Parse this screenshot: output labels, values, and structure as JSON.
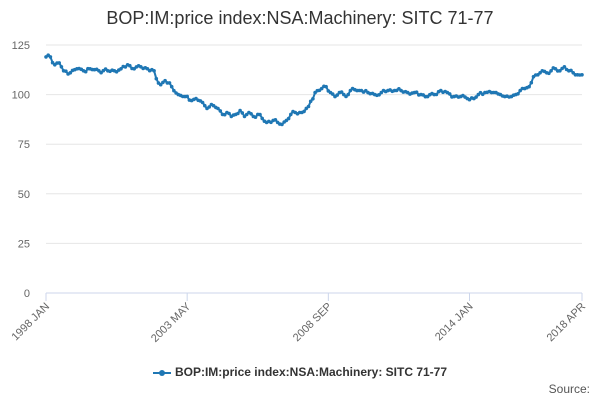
{
  "chart_data": {
    "type": "line",
    "title": "BOP:IM:price index:NSA:Machinery: SITC 71-77",
    "xlabel": "",
    "ylabel": "",
    "ylim": [
      0,
      125
    ],
    "yticks": [
      0,
      25,
      50,
      75,
      100,
      125
    ],
    "x_tick_labels": [
      "1998 JAN",
      "2003 MAY",
      "2008 SEP",
      "2014 JAN",
      "2018 APR"
    ],
    "x_tick_month_index": [
      0,
      64,
      128,
      192,
      243
    ],
    "legend_position": "bottom",
    "series": [
      {
        "name": "BOP:IM:price index:NSA:Machinery: SITC 71-77",
        "color": "#1f77b4",
        "anchors": [
          {
            "m": 0,
            "v": 119
          },
          {
            "m": 2,
            "v": 119
          },
          {
            "m": 4,
            "v": 115
          },
          {
            "m": 6,
            "v": 116
          },
          {
            "m": 8,
            "v": 112
          },
          {
            "m": 11,
            "v": 111
          },
          {
            "m": 14,
            "v": 113
          },
          {
            "m": 17,
            "v": 112
          },
          {
            "m": 20,
            "v": 113
          },
          {
            "m": 24,
            "v": 112
          },
          {
            "m": 28,
            "v": 112
          },
          {
            "m": 31,
            "v": 112
          },
          {
            "m": 34,
            "v": 113
          },
          {
            "m": 37,
            "v": 115
          },
          {
            "m": 40,
            "v": 113
          },
          {
            "m": 43,
            "v": 114
          },
          {
            "m": 46,
            "v": 113
          },
          {
            "m": 49,
            "v": 112
          },
          {
            "m": 50,
            "v": 108
          },
          {
            "m": 52,
            "v": 105
          },
          {
            "m": 54,
            "v": 107
          },
          {
            "m": 57,
            "v": 104
          },
          {
            "m": 60,
            "v": 100
          },
          {
            "m": 63,
            "v": 99
          },
          {
            "m": 66,
            "v": 97
          },
          {
            "m": 68,
            "v": 98
          },
          {
            "m": 71,
            "v": 96
          },
          {
            "m": 73,
            "v": 93
          },
          {
            "m": 75,
            "v": 95
          },
          {
            "m": 78,
            "v": 93
          },
          {
            "m": 80,
            "v": 90
          },
          {
            "m": 82,
            "v": 91
          },
          {
            "m": 84,
            "v": 89
          },
          {
            "m": 86,
            "v": 90
          },
          {
            "m": 88,
            "v": 92
          },
          {
            "m": 90,
            "v": 89
          },
          {
            "m": 92,
            "v": 91
          },
          {
            "m": 94,
            "v": 89
          },
          {
            "m": 96,
            "v": 90
          },
          {
            "m": 98,
            "v": 88
          },
          {
            "m": 100,
            "v": 86
          },
          {
            "m": 103,
            "v": 87
          },
          {
            "m": 105,
            "v": 86
          },
          {
            "m": 107,
            "v": 85
          },
          {
            "m": 109,
            "v": 87
          },
          {
            "m": 111,
            "v": 90
          },
          {
            "m": 113,
            "v": 91
          },
          {
            "m": 116,
            "v": 91
          },
          {
            "m": 119,
            "v": 94
          },
          {
            "m": 122,
            "v": 101
          },
          {
            "m": 125,
            "v": 103
          },
          {
            "m": 127,
            "v": 104
          },
          {
            "m": 129,
            "v": 101
          },
          {
            "m": 131,
            "v": 99
          },
          {
            "m": 133,
            "v": 101
          },
          {
            "m": 135,
            "v": 100
          },
          {
            "m": 137,
            "v": 100
          },
          {
            "m": 139,
            "v": 103
          },
          {
            "m": 141,
            "v": 102
          },
          {
            "m": 143,
            "v": 102
          },
          {
            "m": 146,
            "v": 101
          },
          {
            "m": 149,
            "v": 100
          },
          {
            "m": 152,
            "v": 101
          },
          {
            "m": 155,
            "v": 102
          },
          {
            "m": 158,
            "v": 102
          },
          {
            "m": 161,
            "v": 102
          },
          {
            "m": 164,
            "v": 101
          },
          {
            "m": 167,
            "v": 101
          },
          {
            "m": 170,
            "v": 100
          },
          {
            "m": 173,
            "v": 99
          },
          {
            "m": 176,
            "v": 100
          },
          {
            "m": 179,
            "v": 102
          },
          {
            "m": 182,
            "v": 101
          },
          {
            "m": 185,
            "v": 99
          },
          {
            "m": 188,
            "v": 99
          },
          {
            "m": 191,
            "v": 98
          },
          {
            "m": 194,
            "v": 98
          },
          {
            "m": 196,
            "v": 100
          },
          {
            "m": 199,
            "v": 101
          },
          {
            "m": 202,
            "v": 101
          },
          {
            "m": 204,
            "v": 101
          },
          {
            "m": 206,
            "v": 100
          },
          {
            "m": 208,
            "v": 99
          },
          {
            "m": 211,
            "v": 99
          },
          {
            "m": 213,
            "v": 100
          },
          {
            "m": 215,
            "v": 102
          },
          {
            "m": 217,
            "v": 103
          },
          {
            "m": 219,
            "v": 104
          },
          {
            "m": 221,
            "v": 109
          },
          {
            "m": 223,
            "v": 110
          },
          {
            "m": 225,
            "v": 112
          },
          {
            "m": 227,
            "v": 111
          },
          {
            "m": 229,
            "v": 112
          },
          {
            "m": 231,
            "v": 113
          },
          {
            "m": 233,
            "v": 112
          },
          {
            "m": 235,
            "v": 114
          },
          {
            "m": 237,
            "v": 112
          },
          {
            "m": 239,
            "v": 111
          },
          {
            "m": 241,
            "v": 110
          },
          {
            "m": 243,
            "v": 110
          }
        ]
      }
    ]
  },
  "credits": {
    "label": "Source:"
  }
}
